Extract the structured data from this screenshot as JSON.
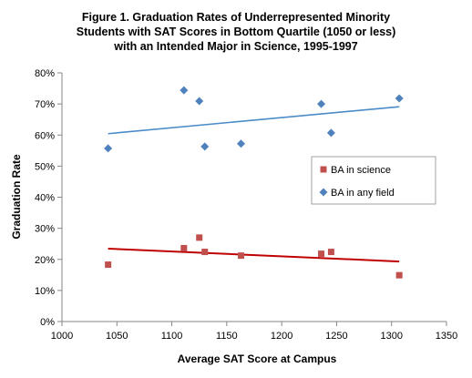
{
  "chart_data": {
    "type": "scatter",
    "title_lines": [
      "Figure 1. Graduation Rates of Underrepresented  Minority",
      "Students with SAT Scores in Bottom Quartile (1050 or less)",
      "with an Intended Major in Science, 1995-1997"
    ],
    "xlabel": "Average SAT Score at Campus",
    "ylabel": "Graduation Rate",
    "xlim": [
      1000,
      1350
    ],
    "ylim": [
      0,
      0.8
    ],
    "x_ticks": [
      1000,
      1050,
      1100,
      1150,
      1200,
      1250,
      1300,
      1350
    ],
    "x_tick_labels": [
      "1000",
      "1050",
      "1100",
      "1150",
      "1200",
      "1250",
      "1300",
      "1350"
    ],
    "y_ticks": [
      0,
      0.1,
      0.2,
      0.3,
      0.4,
      0.5,
      0.6,
      0.7,
      0.8
    ],
    "y_tick_labels": [
      "0%",
      "10%",
      "20%",
      "30%",
      "40%",
      "50%",
      "60%",
      "70%",
      "80%"
    ],
    "grid": false,
    "legend_position": "right",
    "series": [
      {
        "name": "BA in science",
        "marker": "square",
        "color": "#c0504d",
        "trendline": true,
        "points": [
          {
            "x": 1042,
            "y": 0.183
          },
          {
            "x": 1111,
            "y": 0.236
          },
          {
            "x": 1125,
            "y": 0.27
          },
          {
            "x": 1130,
            "y": 0.224
          },
          {
            "x": 1163,
            "y": 0.212
          },
          {
            "x": 1236,
            "y": 0.218
          },
          {
            "x": 1245,
            "y": 0.224
          },
          {
            "x": 1307,
            "y": 0.149
          }
        ]
      },
      {
        "name": "BA in any field",
        "marker": "diamond",
        "color": "#4f81bd",
        "trendline": true,
        "points": [
          {
            "x": 1042,
            "y": 0.557
          },
          {
            "x": 1111,
            "y": 0.744
          },
          {
            "x": 1125,
            "y": 0.709
          },
          {
            "x": 1130,
            "y": 0.563
          },
          {
            "x": 1163,
            "y": 0.572
          },
          {
            "x": 1236,
            "y": 0.7
          },
          {
            "x": 1245,
            "y": 0.607
          },
          {
            "x": 1307,
            "y": 0.718
          }
        ]
      }
    ]
  }
}
